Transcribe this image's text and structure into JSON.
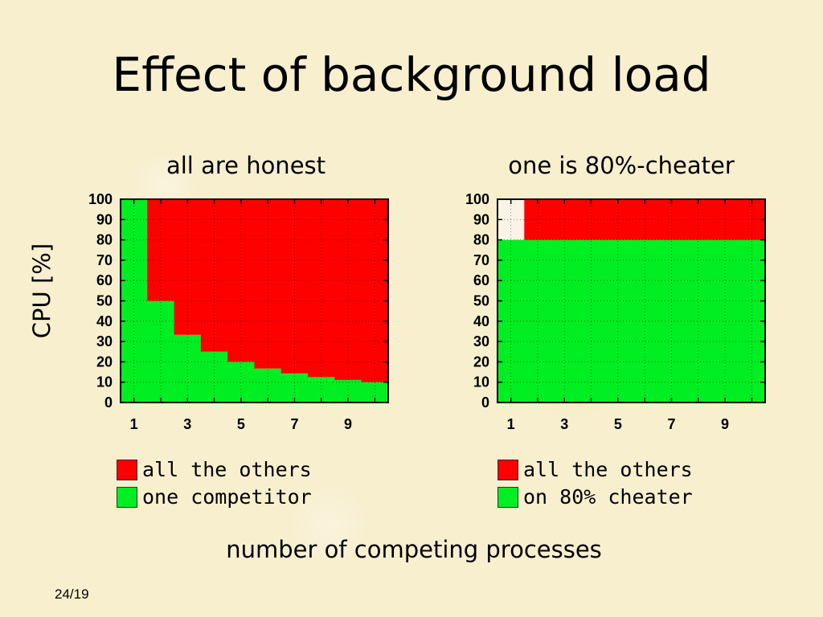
{
  "slide": {
    "title": "Effect of background load",
    "ylabel": "CPU [%]",
    "xlabel": "number of competing processes",
    "page": "24/19"
  },
  "colors": {
    "red": "#ff0000",
    "green": "#00ee22",
    "empty": "#fbf4e6"
  },
  "chart_data": [
    {
      "type": "area",
      "title": "all are honest",
      "xlabel": "number of competing processes",
      "ylabel": "CPU [%]",
      "x_range": [
        0.5,
        10.5
      ],
      "ylim": [
        0,
        100
      ],
      "xticks": [
        "1",
        "3",
        "5",
        "7",
        "9"
      ],
      "yticks": [
        "0",
        "10",
        "20",
        "30",
        "40",
        "50",
        "60",
        "70",
        "80",
        "90",
        "100"
      ],
      "x": [
        1,
        2,
        3,
        4,
        5,
        6,
        7,
        8,
        9,
        10
      ],
      "series": [
        {
          "name": "one competitor",
          "color": "#00ee22",
          "values": [
            100,
            50,
            33.3,
            25,
            20,
            16.7,
            14.3,
            12.5,
            11.1,
            10
          ]
        },
        {
          "name": "all the others",
          "color": "#ff0000",
          "values": [
            0,
            50,
            66.7,
            75,
            80,
            83.3,
            85.7,
            87.5,
            88.9,
            90
          ]
        }
      ],
      "legend": [
        {
          "label": "all the others",
          "color": "#ff0000"
        },
        {
          "label": "one competitor",
          "color": "#00ee22"
        }
      ],
      "grid": true,
      "legend_position": "bottom"
    },
    {
      "type": "area",
      "title": "one is 80%-cheater",
      "xlabel": "number of competing processes",
      "ylabel": "CPU [%]",
      "x_range": [
        0.5,
        10.5
      ],
      "ylim": [
        0,
        100
      ],
      "xticks": [
        "1",
        "3",
        "5",
        "7",
        "9"
      ],
      "yticks": [
        "0",
        "10",
        "20",
        "30",
        "40",
        "50",
        "60",
        "70",
        "80",
        "90",
        "100"
      ],
      "x": [
        1,
        2,
        3,
        4,
        5,
        6,
        7,
        8,
        9,
        10
      ],
      "series": [
        {
          "name": "on 80% cheater",
          "color": "#00ee22",
          "values": [
            80,
            80,
            80,
            80,
            80,
            80,
            80,
            80,
            80,
            80
          ]
        },
        {
          "name": "all the others",
          "color": "#ff0000",
          "values": [
            0,
            20,
            20,
            20,
            20,
            20,
            20,
            20,
            20,
            20
          ]
        }
      ],
      "legend": [
        {
          "label": "all the others",
          "color": "#ff0000"
        },
        {
          "label": "on 80% cheater",
          "color": "#00ee22"
        }
      ],
      "grid": true,
      "legend_position": "bottom"
    }
  ]
}
